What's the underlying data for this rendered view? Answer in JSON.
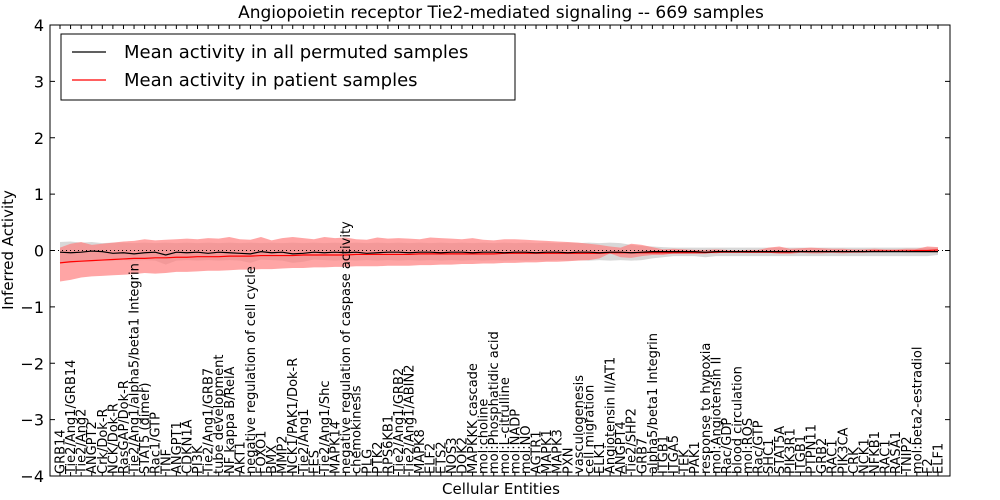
{
  "chart_data": {
    "type": "line",
    "title": "Angiopoietin receptor Tie2-mediated signaling -- 669 samples",
    "xlabel": "Cellular Entities",
    "ylabel": "Inferred Activity",
    "ylim": [
      -4,
      4
    ],
    "yticks": [
      -4,
      -3,
      -2,
      -1,
      0,
      1,
      2,
      3,
      4
    ],
    "ytick_labels": [
      "−4",
      "−3",
      "−2",
      "−1",
      "0",
      "1",
      "2",
      "3",
      "4"
    ],
    "legend_position": "top-left",
    "colors": {
      "permuted": "#000000",
      "patient": "#ff0000",
      "band_patient": "#ff7f7f",
      "band_permuted": "#c8c8c8"
    },
    "categories": [
      "GRB14",
      "Tie2/Ang1/GRB14",
      "Tie2/Ang2",
      "ANGPT2",
      "Crk/Dok-R",
      "NCK/Dok-R",
      "RasGAP/Dok-R",
      "Tie2/Ang1/alpha5/beta1 Integrin",
      "STAT5 (dimer)",
      "Rac1/GTP",
      "TNF",
      "ANGPT1",
      "CDKN1A",
      "PI3K",
      "Tie2/Ang1/GRB7",
      "tube development",
      "NF kappa B/RelA",
      "AKT1",
      "negative regulation of cell cycle",
      "FOXO1",
      "BMX",
      "MMP2",
      "NCK1/PAK1/Dok-R",
      "Tie2/Ang1",
      "FES",
      "Tie2/Ang1/Shc",
      "MAPK14",
      "negative regulation of caspase activity",
      "chemokinesis",
      "PLG",
      "PTK2",
      "RPS6KB1",
      "Tie2/Ang1/GRB2",
      "Tie2/Ang1/ABIN2",
      "MAPK8",
      "ELF2",
      "ETS2",
      "NOS3",
      "DOK2",
      "MAPKKK cascade",
      "mol:choline",
      "mol:Phosphatidic acid",
      "mol:L-citrulline",
      "mol:NADP",
      "mol:NO",
      "AGTR1",
      "MAPK1",
      "MAPK3",
      "PXN",
      "vasculogenesis",
      "cell migration",
      "ELK1",
      "Angiotensin II/AT1",
      "ANGPT4",
      "Tie2/SHP2",
      "GRB7",
      "alpha5/beta1 Integrin",
      "ITGB1",
      "ITGA5",
      "TEK",
      "PAK1",
      "response to hypoxia",
      "mol:Angiotensin II",
      "Rac/GDP",
      "blood circulation",
      "mol:ROS",
      "Rac/GTP",
      "SHC1",
      "STAT5A",
      "PIK3R1",
      "ITGB1",
      "PTPN11",
      "GRB2",
      "RAC1",
      "PIK3CA",
      "CRK",
      "NCK1",
      "NFKB1",
      "RAC1",
      "RASA1",
      "TNIP2",
      "mol:beta2-estradiol",
      "F2",
      "ELF1"
    ],
    "series": [
      {
        "name": "Mean activity in all permuted samples",
        "values": [
          -0.03,
          -0.04,
          -0.03,
          -0.01,
          -0.02,
          -0.05,
          -0.04,
          -0.06,
          -0.04,
          -0.03,
          -0.08,
          -0.03,
          -0.04,
          -0.03,
          -0.05,
          -0.03,
          -0.04,
          -0.05,
          -0.06,
          -0.02,
          -0.04,
          -0.03,
          -0.06,
          -0.05,
          -0.03,
          -0.04,
          -0.03,
          -0.04,
          -0.03,
          -0.05,
          -0.04,
          -0.03,
          -0.03,
          -0.04,
          -0.03,
          -0.03,
          -0.04,
          -0.03,
          -0.03,
          -0.04,
          -0.03,
          -0.03,
          -0.04,
          -0.03,
          -0.03,
          -0.04,
          -0.03,
          -0.03,
          -0.04,
          -0.03,
          -0.03,
          -0.04,
          -0.03,
          -0.03,
          -0.04,
          -0.03,
          -0.02,
          -0.02,
          -0.02,
          -0.02,
          -0.02,
          -0.03,
          -0.02,
          -0.02,
          -0.02,
          -0.02,
          -0.02,
          -0.02,
          -0.02,
          -0.02,
          -0.02,
          -0.02,
          -0.02,
          -0.02,
          -0.02,
          -0.02,
          -0.02,
          -0.02,
          -0.02,
          -0.02,
          -0.02,
          -0.02,
          -0.02,
          -0.02
        ]
      },
      {
        "name": "Mean activity in patient samples",
        "values": [
          -0.22,
          -0.2,
          -0.19,
          -0.18,
          -0.17,
          -0.16,
          -0.15,
          -0.14,
          -0.14,
          -0.13,
          -0.13,
          -0.12,
          -0.12,
          -0.11,
          -0.11,
          -0.11,
          -0.1,
          -0.1,
          -0.1,
          -0.09,
          -0.09,
          -0.09,
          -0.09,
          -0.08,
          -0.08,
          -0.08,
          -0.08,
          -0.08,
          -0.07,
          -0.07,
          -0.07,
          -0.07,
          -0.07,
          -0.07,
          -0.06,
          -0.06,
          -0.06,
          -0.06,
          -0.06,
          -0.06,
          -0.06,
          -0.06,
          -0.05,
          -0.05,
          -0.05,
          -0.05,
          -0.05,
          -0.05,
          -0.05,
          -0.05,
          -0.05,
          -0.05,
          -0.04,
          -0.04,
          -0.04,
          -0.04,
          -0.04,
          -0.04,
          -0.04,
          -0.04,
          -0.04,
          -0.04,
          -0.03,
          -0.03,
          -0.03,
          -0.03,
          -0.03,
          -0.03,
          -0.03,
          -0.03,
          -0.02,
          -0.02,
          -0.02,
          -0.02,
          -0.02,
          -0.02,
          -0.02,
          -0.01,
          -0.01,
          -0.01,
          -0.01,
          0.0,
          0.0,
          0.01
        ]
      }
    ],
    "bands": [
      {
        "name": "permuted spread",
        "upper": [
          0.15,
          0.16,
          0.14,
          0.15,
          0.13,
          0.14,
          0.14,
          0.13,
          0.14,
          0.13,
          0.14,
          0.13,
          0.14,
          0.13,
          0.14,
          0.13,
          0.14,
          0.13,
          0.14,
          0.13,
          0.14,
          0.13,
          0.14,
          0.13,
          0.14,
          0.13,
          0.14,
          0.13,
          0.14,
          0.13,
          0.14,
          0.13,
          0.14,
          0.13,
          0.14,
          0.13,
          0.14,
          0.13,
          0.14,
          0.13,
          0.14,
          0.13,
          0.14,
          0.13,
          0.14,
          0.13,
          0.14,
          0.13,
          0.14,
          0.13,
          0.14,
          0.13,
          0.14,
          0.13,
          0.1,
          0.08,
          0.07,
          0.06,
          0.05,
          0.05,
          0.05,
          0.05,
          0.05,
          0.05,
          0.05,
          0.05,
          0.05,
          0.05,
          0.05,
          0.05,
          0.05,
          0.05,
          0.05,
          0.05,
          0.05,
          0.05,
          0.05,
          0.05,
          0.05,
          0.05,
          0.05,
          0.05,
          0.05,
          0.05
        ],
        "lower": [
          -0.22,
          -0.22,
          -0.2,
          -0.18,
          -0.18,
          -0.18,
          -0.17,
          -0.18,
          -0.17,
          -0.18,
          -0.25,
          -0.18,
          -0.17,
          -0.18,
          -0.17,
          -0.18,
          -0.17,
          -0.18,
          -0.22,
          -0.16,
          -0.17,
          -0.18,
          -0.22,
          -0.2,
          -0.16,
          -0.17,
          -0.18,
          -0.17,
          -0.18,
          -0.17,
          -0.18,
          -0.17,
          -0.18,
          -0.17,
          -0.18,
          -0.17,
          -0.18,
          -0.17,
          -0.18,
          -0.17,
          -0.18,
          -0.17,
          -0.18,
          -0.17,
          -0.18,
          -0.17,
          -0.18,
          -0.17,
          -0.18,
          -0.17,
          -0.18,
          -0.17,
          -0.18,
          -0.17,
          -0.18,
          -0.17,
          -0.14,
          -0.12,
          -0.1,
          -0.1,
          -0.1,
          -0.12,
          -0.1,
          -0.1,
          -0.1,
          -0.1,
          -0.1,
          -0.1,
          -0.1,
          -0.1,
          -0.1,
          -0.1,
          -0.1,
          -0.1,
          -0.1,
          -0.1,
          -0.1,
          -0.1,
          -0.1,
          -0.1,
          -0.1,
          -0.1,
          -0.1,
          -0.08
        ]
      },
      {
        "name": "patient spread",
        "upper": [
          0.05,
          0.12,
          0.15,
          0.1,
          0.12,
          0.14,
          0.16,
          0.17,
          0.2,
          0.18,
          0.19,
          0.2,
          0.21,
          0.2,
          0.22,
          0.21,
          0.24,
          0.2,
          0.19,
          0.24,
          0.18,
          0.22,
          0.24,
          0.22,
          0.2,
          0.24,
          0.22,
          0.23,
          0.2,
          0.19,
          0.23,
          0.21,
          0.22,
          0.21,
          0.2,
          0.23,
          0.22,
          0.21,
          0.2,
          0.22,
          0.19,
          0.18,
          0.2,
          0.2,
          0.19,
          0.18,
          0.17,
          0.16,
          0.15,
          0.14,
          0.12,
          0.1,
          0.07,
          0.05,
          0.12,
          0.1,
          0.06,
          0.02,
          0.03,
          0.02,
          0.01,
          0.01,
          0.02,
          0.01,
          0.0,
          0.01,
          0.01,
          0.05,
          0.07,
          0.03,
          0.04,
          0.05,
          0.04,
          0.03,
          0.03,
          0.02,
          0.02,
          0.03,
          0.02,
          0.02,
          0.03,
          0.03,
          0.07,
          0.06
        ],
        "lower": [
          -0.55,
          -0.52,
          -0.48,
          -0.46,
          -0.45,
          -0.44,
          -0.43,
          -0.42,
          -0.4,
          -0.41,
          -0.4,
          -0.38,
          -0.38,
          -0.37,
          -0.36,
          -0.36,
          -0.35,
          -0.34,
          -0.34,
          -0.33,
          -0.33,
          -0.32,
          -0.31,
          -0.31,
          -0.3,
          -0.3,
          -0.29,
          -0.29,
          -0.28,
          -0.28,
          -0.28,
          -0.27,
          -0.27,
          -0.27,
          -0.26,
          -0.26,
          -0.25,
          -0.25,
          -0.24,
          -0.24,
          -0.23,
          -0.23,
          -0.22,
          -0.22,
          -0.21,
          -0.21,
          -0.2,
          -0.2,
          -0.19,
          -0.18,
          -0.17,
          -0.14,
          -0.05,
          -0.12,
          -0.13,
          -0.1,
          -0.08,
          -0.08,
          -0.05,
          -0.05,
          -0.04,
          -0.04,
          -0.05,
          -0.03,
          -0.03,
          -0.04,
          -0.04,
          -0.04,
          -0.06,
          -0.06,
          -0.04,
          -0.05,
          -0.05,
          -0.04,
          -0.05,
          -0.04,
          -0.04,
          -0.03,
          -0.03,
          -0.02,
          -0.03,
          -0.03,
          -0.03,
          -0.03
        ]
      }
    ]
  }
}
